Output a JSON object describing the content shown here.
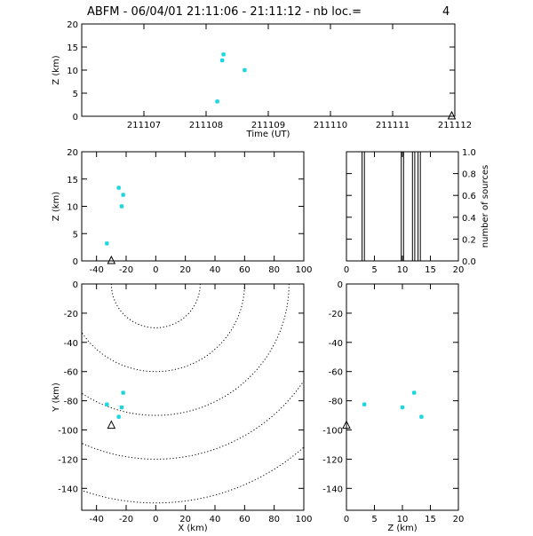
{
  "header": {
    "title": "ABFM - 06/04/01 21:11:06 - 21:11:12 - nb loc.=",
    "count": "4"
  },
  "colors": {
    "source": "#1cd6e0",
    "axis": "#000000",
    "contour": "#000000",
    "station": "#000000"
  },
  "station_marker": "triangle-outline",
  "chart_data": [
    {
      "id": "time-height",
      "type": "scatter",
      "xlabel": "Time (UT)",
      "ylabel": "Z (km)",
      "xlim": [
        211106,
        211112
      ],
      "ylim": [
        0,
        20
      ],
      "x_tick_labels": [
        "211107",
        "211108",
        "211109",
        "211110",
        "211111",
        "211112"
      ],
      "y_tick_labels": [
        "0",
        "5",
        "10",
        "15",
        "20"
      ],
      "series": [
        {
          "points": [
            [
              211108.18,
              3.2
            ],
            [
              211108.26,
              12.1
            ],
            [
              211108.28,
              13.4
            ],
            [
              211108.62,
              10.0
            ]
          ]
        }
      ],
      "station": [
        211111.95,
        0
      ]
    },
    {
      "id": "x-height",
      "type": "scatter",
      "xlabel": "",
      "ylabel": "Z (km)",
      "xlim": [
        -50,
        100
      ],
      "ylim": [
        0,
        20
      ],
      "x_tick_labels": [
        "-40",
        "-20",
        "0",
        "20",
        "40",
        "60",
        "80",
        "100"
      ],
      "y_tick_labels": [
        "0",
        "5",
        "10",
        "15",
        "20"
      ],
      "series": [
        {
          "points": [
            [
              -33,
              3.2
            ],
            [
              -25,
              13.4
            ],
            [
              -22,
              12.1
            ],
            [
              -23,
              10.0
            ]
          ]
        }
      ],
      "station": [
        -30,
        0
      ]
    },
    {
      "id": "source-histogram",
      "type": "line",
      "xlabel": "",
      "ylabel": "number of sources",
      "xlim": [
        0,
        20
      ],
      "ylim": [
        0,
        1
      ],
      "x_tick_labels": [
        "0",
        "5",
        "10",
        "15",
        "20"
      ],
      "y_tick_labels": [
        "0.0",
        "0.2",
        "0.4",
        "0.6",
        "0.8",
        "1.0"
      ],
      "step": [
        [
          0,
          0
        ],
        [
          2.8,
          0
        ],
        [
          2.8,
          1
        ],
        [
          3.2,
          1
        ],
        [
          3.2,
          0
        ],
        [
          9.8,
          0
        ],
        [
          9.8,
          1
        ],
        [
          10.2,
          1
        ],
        [
          10.2,
          0
        ],
        [
          11.8,
          0
        ],
        [
          11.8,
          1
        ],
        [
          12.2,
          1
        ],
        [
          12.2,
          0
        ],
        [
          12.8,
          0
        ],
        [
          12.8,
          1
        ],
        [
          13.2,
          1
        ],
        [
          13.2,
          0
        ],
        [
          20,
          0
        ]
      ]
    },
    {
      "id": "plan-view",
      "type": "scatter",
      "xlabel": "X (km)",
      "ylabel": "Y (km)",
      "xlim": [
        -50,
        100
      ],
      "ylim": [
        -155,
        0
      ],
      "x_tick_labels": [
        "-40",
        "-20",
        "0",
        "20",
        "40",
        "60",
        "80",
        "100"
      ],
      "y_tick_labels": [
        "-140",
        "-120",
        "-100",
        "-80",
        "-60",
        "-40",
        "-20",
        "0"
      ],
      "series": [
        {
          "points": [
            [
              -33,
              -82.5
            ],
            [
              -22,
              -74.5
            ],
            [
              -23,
              -84.5
            ],
            [
              -25,
              -91.0
            ]
          ]
        }
      ],
      "station": [
        -30,
        -97
      ],
      "range_rings": [
        30,
        60,
        90,
        120,
        150
      ],
      "range_center": [
        0,
        0
      ]
    },
    {
      "id": "height-y",
      "type": "scatter",
      "xlabel": "Z (km)",
      "ylabel": "",
      "xlim": [
        0,
        20
      ],
      "ylim": [
        -155,
        0
      ],
      "x_tick_labels": [
        "0",
        "5",
        "10",
        "15",
        "20"
      ],
      "y_tick_labels": [
        "-140",
        "-120",
        "-100",
        "-80",
        "-60",
        "-40",
        "-20",
        "0"
      ],
      "series": [
        {
          "points": [
            [
              3.2,
              -82.5
            ],
            [
              12.1,
              -74.5
            ],
            [
              10.0,
              -84.5
            ],
            [
              13.4,
              -91.0
            ]
          ]
        }
      ],
      "station": [
        0,
        -97
      ]
    }
  ]
}
